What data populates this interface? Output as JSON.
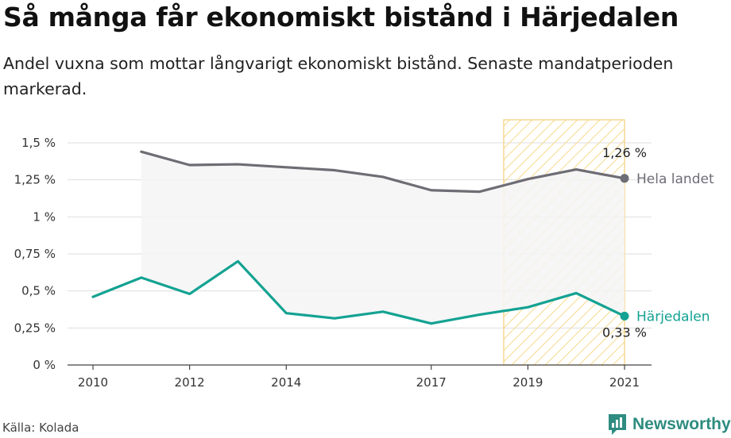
{
  "title": "Så många får ekonomiskt bistånd i Härjedalen",
  "subtitle": "Andel vuxna som mottar långvarigt ekonomiskt bistånd. Senaste mandatperioden markerad.",
  "source": "Källa: Kolada",
  "brand": "Newsworthy",
  "colors": {
    "national": "#6e6d75",
    "local": "#14a292",
    "highlight": "#f3cf74",
    "fill": "#f5f5f5"
  },
  "chart_data": {
    "type": "line",
    "x": [
      2010,
      2011,
      2012,
      2013,
      2014,
      2015,
      2016,
      2017,
      2018,
      2019,
      2020,
      2021
    ],
    "series": [
      {
        "name": "Hela landet",
        "values": [
          null,
          1.44,
          1.35,
          1.355,
          1.335,
          1.315,
          1.27,
          1.18,
          1.17,
          1.255,
          1.32,
          1.26
        ],
        "end_label": "1,26 %"
      },
      {
        "name": "Härjedalen",
        "values": [
          0.46,
          0.59,
          0.48,
          0.7,
          0.35,
          0.315,
          0.36,
          0.28,
          0.34,
          0.39,
          0.485,
          0.33
        ],
        "end_label": "0,33 %"
      }
    ],
    "x_ticks": [
      2010,
      2012,
      2014,
      2017,
      2019,
      2021
    ],
    "x_tick_labels": [
      "2010",
      "2012",
      "2014",
      "2017",
      "2019",
      "2021"
    ],
    "y_ticks": [
      0,
      0.25,
      0.5,
      0.75,
      1,
      1.25,
      1.5
    ],
    "y_tick_labels": [
      "0 %",
      "0,25 %",
      "0,5 %",
      "0,75 %",
      "1 %",
      "1,25 %",
      "1,5 %"
    ],
    "ylim": [
      0,
      1.5
    ],
    "highlight_period": [
      2018.5,
      2021
    ],
    "grid": true
  }
}
